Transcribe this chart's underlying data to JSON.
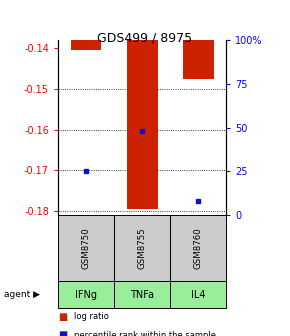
{
  "title": "GDS499 / 8975",
  "samples": [
    "GSM8750",
    "GSM8755",
    "GSM8760"
  ],
  "agents": [
    "IFNg",
    "TNFa",
    "IL4"
  ],
  "log_ratios": [
    -0.1405,
    -0.1795,
    -0.1475
  ],
  "percentiles": [
    25.0,
    48.0,
    8.0
  ],
  "ylim_left": [
    -0.181,
    -0.138
  ],
  "yticks_left": [
    -0.18,
    -0.17,
    -0.16,
    -0.15,
    -0.14
  ],
  "yticks_right": [
    0,
    25,
    50,
    75,
    100
  ],
  "bar_color": "#cc2200",
  "percentile_color": "#1111cc",
  "sample_box_color": "#cccccc",
  "agent_box_color": "#99ee99",
  "bar_width": 0.55,
  "background_color": "#ffffff"
}
